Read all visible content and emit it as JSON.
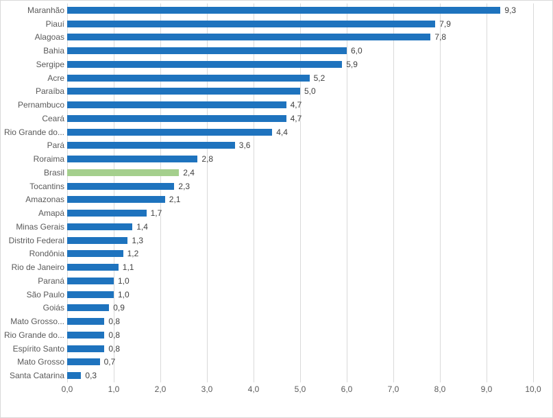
{
  "chart_data": {
    "type": "bar",
    "orientation": "horizontal",
    "title": "",
    "xlabel": "",
    "ylabel": "",
    "xlim": [
      0,
      10
    ],
    "grid": true,
    "legend": "none",
    "decimal_style": "comma",
    "categories": [
      "Maranhão",
      "Piauí",
      "Alagoas",
      "Bahia",
      "Sergipe",
      "Acre",
      "Paraíba",
      "Pernambuco",
      "Ceará",
      "Rio Grande do...",
      "Pará",
      "Roraima",
      "Brasil",
      "Tocantins",
      "Amazonas",
      "Amapá",
      "Minas Gerais",
      "Distrito Federal",
      "Rondônia",
      "Rio de Janeiro",
      "Paraná",
      "São Paulo",
      "Goiás",
      "Mato Grosso...",
      "Rio Grande do...",
      "Espírito Santo",
      "Mato Grosso",
      "Santa Catarina"
    ],
    "values": [
      9.3,
      7.9,
      7.8,
      6.0,
      5.9,
      5.2,
      5.0,
      4.7,
      4.7,
      4.4,
      3.6,
      2.8,
      2.4,
      2.3,
      2.1,
      1.7,
      1.4,
      1.3,
      1.2,
      1.1,
      1.0,
      1.0,
      0.9,
      0.8,
      0.8,
      0.8,
      0.7,
      0.3
    ],
    "value_labels": [
      "9,3",
      "7,9",
      "7,8",
      "6,0",
      "5,9",
      "5,2",
      "5,0",
      "4,7",
      "4,7",
      "4,4",
      "3,6",
      "2,8",
      "2,4",
      "2,3",
      "2,1",
      "1,7",
      "1,4",
      "1,3",
      "1,2",
      "1,1",
      "1,0",
      "1,0",
      "0,9",
      "0,8",
      "0,8",
      "0,8",
      "0,7",
      "0,3"
    ],
    "highlight_index": 12,
    "highlight_category": "Brasil",
    "x_ticks": [
      "0,0",
      "1,0",
      "2,0",
      "3,0",
      "4,0",
      "5,0",
      "6,0",
      "7,0",
      "8,0",
      "9,0",
      "10,0"
    ],
    "colors": {
      "bar": "#1e73be",
      "highlight_bar": "#a4cf8d",
      "gridline": "#d9d9d9",
      "category_text": "#595959",
      "value_text": "#404040",
      "axis_text": "#595959",
      "background": "#ffffff",
      "frame_border": "#d9d9d9"
    }
  }
}
